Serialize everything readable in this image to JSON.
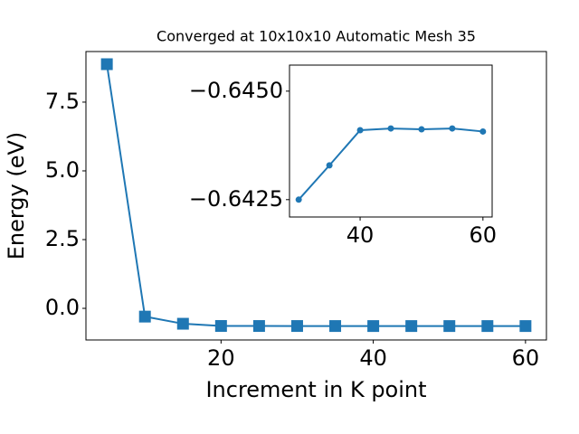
{
  "chart_data": [
    {
      "type": "line",
      "title": "Converged at 10x10x10 Automatic Mesh 35",
      "x_label": "Increment in K point",
      "y_label": "Energy (eV)",
      "x": [
        5,
        10,
        15,
        20,
        25,
        30,
        35,
        40,
        45,
        50,
        55,
        60
      ],
      "series": [
        {
          "color": "#1f77b4",
          "marker": "square",
          "values": [
            8.88,
            -0.3,
            -0.56,
            -0.641,
            -0.642,
            -0.6425,
            -0.6433,
            -0.6441,
            -0.6441,
            -0.6441,
            -0.6441,
            -0.6441
          ]
        }
      ],
      "xlim": [
        2.25,
        62.75
      ],
      "xticks": [
        20,
        40,
        60
      ],
      "ylim": [
        -1.15,
        9.34
      ],
      "yticks": [
        {
          "value": 0,
          "label": "0.0"
        },
        2.5,
        {
          "value": 5,
          "label": "5.0"
        },
        7.5
      ]
    },
    {
      "type": "line",
      "x": [
        30,
        35,
        40,
        45,
        50,
        55,
        60
      ],
      "series": [
        {
          "color": "#1f77b4",
          "marker": "circle",
          "values": [
            -0.6425,
            -0.64329,
            -0.6441,
            -0.64414,
            -0.64412,
            -0.64414,
            -0.64407
          ]
        }
      ],
      "xlim": [
        28.5,
        61.5
      ],
      "xticks": [
        40,
        60
      ],
      "ylim": [
        -0.6421,
        -0.6456
      ],
      "yticks": [
        {
          "value": -0.6425,
          "label": "−0.6425"
        },
        {
          "value": -0.645,
          "label": "−0.6450"
        }
      ]
    }
  ]
}
